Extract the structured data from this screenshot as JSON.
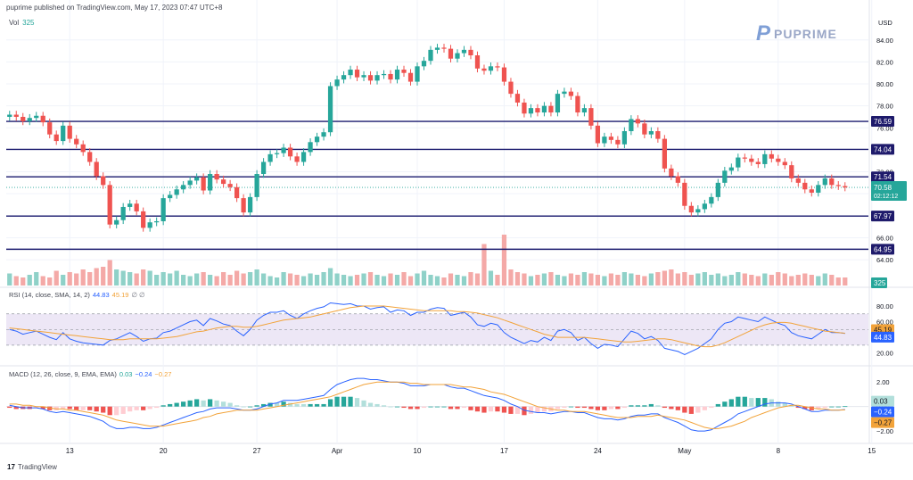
{
  "header": {
    "published_text": "puprime published on TradingView.com, May 17, 2023 07:47 UTC+8"
  },
  "brand": {
    "name": "PUPRIME",
    "logo_icon": "pu-logo-icon"
  },
  "footer": {
    "logo_icon": "tradingview-logo-icon",
    "text": "TradingView"
  },
  "colors": {
    "up": "#26a69a",
    "down": "#ef5350",
    "vol_up": "#8fd1c8",
    "vol_down": "#f4a9a7",
    "level_line": "#1a1a6e",
    "level_tag_bg": "#1e1a6b",
    "rsi_line": "#2962ff",
    "rsi_sma": "#f2a33a",
    "macd_line": "#2962ff",
    "signal_line": "#f2a33a",
    "rsi_band": "#ede7f6",
    "grid": "#f0f3fa"
  },
  "price_axis": {
    "currency": "USD",
    "ticks": [
      84,
      82,
      80,
      78,
      76,
      74,
      72,
      70,
      68,
      66,
      64
    ],
    "ylim": [
      63.6,
      85.2
    ],
    "current_price": "70.58",
    "countdown": "02:12:12"
  },
  "volume": {
    "label": "Vol",
    "value": "325"
  },
  "rsi": {
    "label": "RSI (14, close, SMA, 14, 2)",
    "value": "44.83",
    "sma_value": "45.19",
    "extra": "∅ ∅",
    "ticks": [
      80,
      60,
      40,
      20
    ],
    "upper_band": 70,
    "lower_band": 30,
    "mid": 50
  },
  "macd": {
    "label": "MACD (12, 26, close, 9, EMA, EMA)",
    "histogram_value": "0.03",
    "macd_value": "−0.24",
    "signal_value": "−0.27",
    "ticks": [
      {
        "v": 2,
        "label": "2.00"
      },
      {
        "v": 0,
        "label": "0.00"
      },
      {
        "v": -2,
        "label": "−2.00"
      }
    ]
  },
  "time_axis": {
    "labels": [
      {
        "label": "13",
        "bar": 9
      },
      {
        "label": "20",
        "bar": 23
      },
      {
        "label": "27",
        "bar": 37
      },
      {
        "label": "Apr",
        "bar": 49
      },
      {
        "label": "10",
        "bar": 61
      },
      {
        "label": "17",
        "bar": 74
      },
      {
        "label": "24",
        "bar": 88
      },
      {
        "label": "May",
        "bar": 101
      },
      {
        "label": "8",
        "bar": 115
      },
      {
        "label": "15",
        "bar": 129
      }
    ]
  },
  "chart_data": [
    {
      "type": "candlestick",
      "title": "",
      "ylabel": "USD",
      "ylim": [
        63.6,
        85.2
      ],
      "horizontal_levels": [
        {
          "value": 76.59,
          "label": "76.59"
        },
        {
          "value": 74.04,
          "label": "74.04"
        },
        {
          "value": 71.54,
          "label": "71.54"
        },
        {
          "value": 67.97,
          "label": "67.97"
        },
        {
          "value": 64.95,
          "label": "64.95"
        }
      ],
      "close": [
        77.2,
        77.0,
        76.6,
        76.9,
        77.1,
        76.5,
        75.4,
        74.8,
        76.2,
        75.0,
        74.5,
        73.8,
        72.9,
        71.6,
        70.8,
        67.2,
        67.6,
        68.8,
        69.1,
        68.4,
        66.9,
        67.4,
        67.5,
        69.6,
        69.9,
        70.4,
        70.8,
        71.2,
        71.5,
        70.3,
        71.8,
        71.3,
        70.9,
        70.6,
        69.6,
        68.3,
        69.7,
        71.8,
        72.9,
        73.6,
        73.7,
        74.2,
        73.4,
        72.9,
        73.8,
        74.7,
        75.2,
        75.6,
        79.8,
        80.4,
        80.8,
        81.3,
        80.6,
        80.8,
        80.3,
        80.8,
        80.9,
        80.4,
        81.3,
        81.0,
        80.2,
        81.6,
        82.1,
        83.1,
        83.3,
        83.2,
        82.3,
        82.8,
        83.1,
        82.6,
        81.4,
        81.2,
        81.6,
        81.5,
        80.2,
        79.1,
        78.3,
        77.3,
        77.8,
        77.4,
        78.0,
        77.4,
        79.1,
        79.3,
        78.9,
        77.4,
        77.8,
        76.2,
        74.6,
        75.2,
        74.9,
        74.5,
        75.7,
        76.8,
        76.4,
        75.4,
        75.7,
        75.0,
        72.3,
        71.6,
        71.0,
        68.9,
        68.3,
        68.6,
        69.1,
        69.7,
        71.0,
        72.1,
        72.4,
        73.3,
        73.2,
        72.9,
        72.7,
        73.6,
        73.2,
        72.9,
        72.6,
        71.4,
        71.0,
        70.4,
        70.1,
        70.8,
        71.4,
        70.8,
        70.7,
        70.58
      ],
      "open_note": "",
      "volume_relative": [
        0.45,
        0.35,
        0.3,
        0.4,
        0.5,
        0.35,
        0.3,
        0.55,
        0.4,
        0.5,
        0.45,
        0.6,
        0.5,
        0.65,
        0.7,
        0.95,
        0.6,
        0.55,
        0.5,
        0.45,
        0.6,
        0.55,
        0.4,
        0.5,
        0.45,
        0.55,
        0.4,
        0.35,
        0.45,
        0.5,
        0.4,
        0.35,
        0.5,
        0.4,
        0.55,
        0.45,
        0.5,
        0.6,
        0.45,
        0.35,
        0.3,
        0.5,
        0.45,
        0.4,
        0.35,
        0.45,
        0.4,
        0.5,
        0.65,
        0.45,
        0.4,
        0.35,
        0.4,
        0.45,
        0.5,
        0.4,
        0.35,
        0.45,
        0.4,
        0.5,
        0.35,
        0.45,
        0.55,
        0.4,
        0.35,
        0.3,
        0.45,
        0.4,
        0.35,
        0.5,
        0.45,
        1.55,
        0.55,
        0.4,
        1.9,
        0.6,
        0.5,
        0.45,
        0.35,
        0.4,
        0.45,
        0.5,
        0.4,
        0.35,
        0.45,
        0.4,
        0.5,
        0.45,
        0.4,
        0.35,
        0.45,
        0.4,
        0.5,
        0.45,
        0.4,
        0.35,
        0.45,
        0.5,
        0.55,
        0.6,
        0.45,
        0.5,
        0.4,
        0.45,
        0.5,
        0.4,
        0.45,
        0.35,
        0.4,
        0.5,
        0.45,
        0.4,
        0.35,
        0.45,
        0.4,
        0.5,
        0.45,
        0.35,
        0.4,
        0.45,
        0.4,
        0.35,
        0.45,
        0.4,
        0.3,
        0.3
      ]
    },
    {
      "type": "line",
      "title": "RSI (14, close, SMA, 14, 2)",
      "ylim": [
        15,
        88
      ],
      "series": [
        {
          "name": "RSI",
          "values": [
            50,
            48,
            44,
            46,
            48,
            44,
            40,
            37,
            46,
            38,
            35,
            33,
            32,
            31,
            30,
            36,
            38,
            42,
            46,
            41,
            35,
            38,
            39,
            46,
            48,
            52,
            56,
            60,
            62,
            55,
            64,
            61,
            57,
            55,
            48,
            42,
            50,
            62,
            68,
            72,
            72,
            74,
            68,
            64,
            70,
            74,
            77,
            79,
            84,
            83,
            82,
            83,
            80,
            80,
            76,
            78,
            79,
            72,
            75,
            74,
            68,
            72,
            72,
            76,
            78,
            77,
            68,
            70,
            72,
            66,
            56,
            54,
            58,
            56,
            46,
            40,
            36,
            32,
            36,
            34,
            40,
            36,
            48,
            50,
            46,
            36,
            40,
            32,
            26,
            31,
            30,
            28,
            38,
            48,
            45,
            38,
            41,
            36,
            26,
            24,
            22,
            18,
            22,
            26,
            32,
            38,
            50,
            58,
            60,
            66,
            64,
            62,
            60,
            66,
            62,
            58,
            55,
            46,
            42,
            40,
            38,
            44,
            50,
            46,
            46,
            44.83
          ]
        },
        {
          "name": "SMA",
          "values": [
            52,
            51,
            50,
            49,
            48,
            47,
            46,
            45,
            44,
            43,
            42,
            41,
            40,
            39,
            38,
            37,
            37,
            37,
            38,
            38,
            38,
            38,
            38,
            39,
            40,
            41,
            43,
            45,
            47,
            48,
            50,
            52,
            53,
            54,
            54,
            53,
            53,
            54,
            56,
            58,
            60,
            62,
            63,
            64,
            65,
            66,
            68,
            70,
            72,
            74,
            76,
            78,
            79,
            80,
            80,
            80,
            80,
            79,
            78,
            77,
            76,
            75,
            74,
            74,
            74,
            74,
            74,
            73,
            73,
            72,
            71,
            69,
            67,
            65,
            62,
            59,
            56,
            53,
            50,
            47,
            44,
            42,
            40,
            40,
            40,
            40,
            40,
            39,
            38,
            37,
            36,
            35,
            34,
            34,
            35,
            36,
            37,
            38,
            38,
            37,
            35,
            33,
            31,
            29,
            28,
            28,
            30,
            33,
            37,
            41,
            45,
            49,
            53,
            56,
            58,
            59,
            59,
            58,
            56,
            54,
            52,
            50,
            48,
            47,
            46,
            45.19
          ]
        }
      ]
    },
    {
      "type": "line",
      "title": "MACD (12, 26, close, 9, EMA, EMA)",
      "ylim": [
        -2.5,
        2.6
      ],
      "series": [
        {
          "name": "MACD",
          "values": [
            0.1,
            0.0,
            -0.1,
            -0.1,
            -0.1,
            -0.2,
            -0.4,
            -0.5,
            -0.4,
            -0.5,
            -0.6,
            -0.7,
            -0.8,
            -1.0,
            -1.2,
            -1.6,
            -1.8,
            -1.8,
            -1.7,
            -1.7,
            -1.8,
            -1.8,
            -1.7,
            -1.5,
            -1.3,
            -1.1,
            -0.9,
            -0.7,
            -0.5,
            -0.4,
            -0.2,
            -0.1,
            -0.1,
            -0.1,
            -0.2,
            -0.3,
            -0.3,
            -0.2,
            0.0,
            0.2,
            0.3,
            0.5,
            0.5,
            0.5,
            0.6,
            0.7,
            0.8,
            0.9,
            1.4,
            1.8,
            2.0,
            2.2,
            2.3,
            2.3,
            2.2,
            2.2,
            2.1,
            2.0,
            2.0,
            1.9,
            1.7,
            1.7,
            1.7,
            1.8,
            1.8,
            1.8,
            1.6,
            1.5,
            1.5,
            1.3,
            1.1,
            0.9,
            0.8,
            0.7,
            0.5,
            0.2,
            0.0,
            -0.3,
            -0.4,
            -0.5,
            -0.5,
            -0.6,
            -0.5,
            -0.4,
            -0.4,
            -0.5,
            -0.5,
            -0.7,
            -0.9,
            -1.0,
            -1.0,
            -1.1,
            -1.0,
            -0.8,
            -0.7,
            -0.7,
            -0.6,
            -0.6,
            -0.9,
            -1.1,
            -1.3,
            -1.6,
            -1.9,
            -2.0,
            -2.0,
            -1.9,
            -1.6,
            -1.3,
            -1.0,
            -0.6,
            -0.4,
            -0.2,
            0.0,
            0.2,
            0.3,
            0.3,
            0.3,
            0.2,
            0.0,
            -0.2,
            -0.4,
            -0.4,
            -0.3,
            -0.3,
            -0.3,
            -0.24
          ]
        },
        {
          "name": "Signal",
          "values": [
            0.2,
            0.2,
            0.1,
            0.1,
            0.0,
            0.0,
            -0.1,
            -0.2,
            -0.2,
            -0.3,
            -0.3,
            -0.4,
            -0.5,
            -0.6,
            -0.7,
            -0.9,
            -1.1,
            -1.2,
            -1.3,
            -1.4,
            -1.5,
            -1.6,
            -1.6,
            -1.6,
            -1.5,
            -1.4,
            -1.3,
            -1.2,
            -1.1,
            -0.9,
            -0.8,
            -0.6,
            -0.5,
            -0.4,
            -0.3,
            -0.3,
            -0.3,
            -0.3,
            -0.2,
            -0.1,
            0.0,
            0.1,
            0.2,
            0.3,
            0.4,
            0.5,
            0.6,
            0.7,
            0.8,
            1.0,
            1.2,
            1.4,
            1.6,
            1.8,
            1.9,
            2.0,
            2.0,
            2.0,
            2.0,
            2.0,
            1.9,
            1.9,
            1.8,
            1.8,
            1.8,
            1.8,
            1.8,
            1.7,
            1.6,
            1.6,
            1.5,
            1.4,
            1.2,
            1.1,
            1.0,
            0.8,
            0.6,
            0.4,
            0.2,
            0.0,
            -0.1,
            -0.2,
            -0.3,
            -0.3,
            -0.4,
            -0.4,
            -0.4,
            -0.5,
            -0.6,
            -0.7,
            -0.8,
            -0.9,
            -0.9,
            -0.9,
            -0.8,
            -0.8,
            -0.8,
            -0.7,
            -0.8,
            -0.9,
            -1.0,
            -1.1,
            -1.3,
            -1.5,
            -1.7,
            -1.8,
            -1.8,
            -1.7,
            -1.6,
            -1.4,
            -1.2,
            -0.9,
            -0.7,
            -0.5,
            -0.3,
            -0.1,
            0.0,
            0.1,
            0.1,
            0.0,
            -0.1,
            -0.2,
            -0.2,
            -0.3,
            -0.3,
            -0.27
          ]
        }
      ]
    }
  ]
}
